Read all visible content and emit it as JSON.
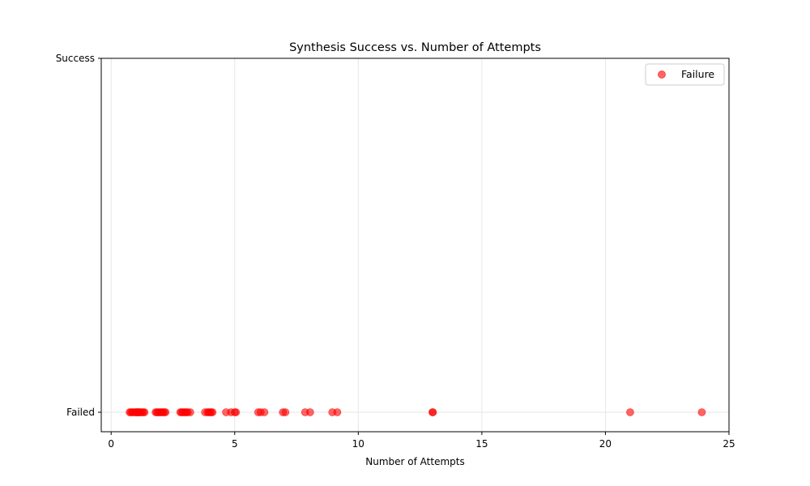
{
  "chart_data": {
    "type": "scatter",
    "title": "Synthesis Success vs. Number of Attempts",
    "xlabel": "Number of Attempts",
    "ylabel": "",
    "xlim": [
      -0.4,
      25
    ],
    "ylim": [
      -0.055,
      1
    ],
    "x_ticks": [
      0,
      5,
      10,
      15,
      20,
      25
    ],
    "y_ticks": [
      {
        "value": 0,
        "label": "Failed"
      },
      {
        "value": 1,
        "label": "Success"
      }
    ],
    "grid": true,
    "legend_position": "top-right",
    "series": [
      {
        "name": "Failure",
        "color": "#ff0000",
        "alpha": 0.6,
        "y": 0,
        "x": [
          0.75,
          0.8,
          0.85,
          0.9,
          0.95,
          1.0,
          1.02,
          1.05,
          1.08,
          1.1,
          1.12,
          1.15,
          1.2,
          1.25,
          1.3,
          1.35,
          1.8,
          1.85,
          1.9,
          1.95,
          2.0,
          2.05,
          2.1,
          2.15,
          2.2,
          2.8,
          2.85,
          2.9,
          2.95,
          3.0,
          3.05,
          3.1,
          3.2,
          3.8,
          3.9,
          3.95,
          4.0,
          4.05,
          4.1,
          4.65,
          4.85,
          5.0,
          5.05,
          5.95,
          6.05,
          6.2,
          6.95,
          7.05,
          7.85,
          8.05,
          8.95,
          9.15,
          13.0,
          13.02,
          21.0,
          23.9
        ]
      }
    ]
  }
}
